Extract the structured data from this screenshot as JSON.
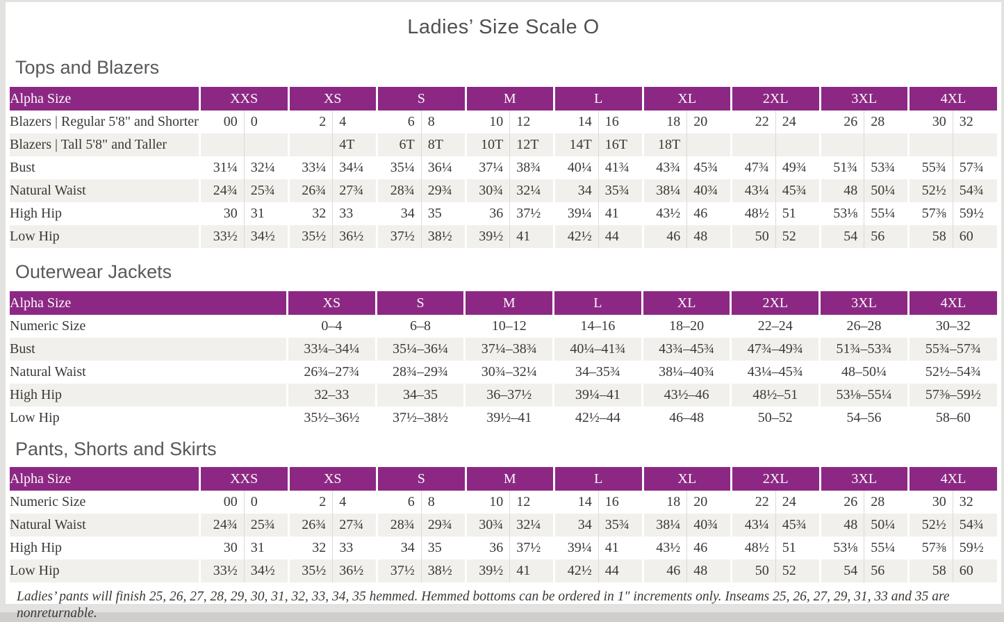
{
  "page": {
    "title": "Ladies’ Size Scale O",
    "footnote": "Ladies’ pants will finish 25, 26, 27, 28, 29, 30, 31, 32, 33, 34, 35 hemmed. Hemmed bottoms can be ordered in 1″ increments only. Inseams 25, 26, 27, 29, 31, 33 and 35 are nonreturnable."
  },
  "colors": {
    "header_purple": "#8c2884",
    "row_stripe": "#f2f0ed",
    "cell_divider": "#ddd9d4",
    "heading_gray": "#56585a",
    "text_gray": "#3a3835"
  },
  "tables": [
    {
      "heading": "Tops and Blazers",
      "header_label": "Alpha Size",
      "paired": true,
      "sizes": [
        "XXS",
        "XS",
        "S",
        "M",
        "L",
        "XL",
        "2XL",
        "3XL",
        "4XL"
      ],
      "rows": [
        {
          "label": "Blazers  |  Regular 5'8\" and Shorter",
          "values": [
            [
              "00",
              "0"
            ],
            [
              "2",
              "4"
            ],
            [
              "6",
              "8"
            ],
            [
              "10",
              "12"
            ],
            [
              "14",
              "16"
            ],
            [
              "18",
              "20"
            ],
            [
              "22",
              "24"
            ],
            [
              "26",
              "28"
            ],
            [
              "30",
              "32"
            ]
          ]
        },
        {
          "label": "Blazers  |  Tall 5'8\" and Taller",
          "values": [
            [
              "",
              ""
            ],
            [
              "",
              "4T"
            ],
            [
              "6T",
              "8T"
            ],
            [
              "10T",
              "12T"
            ],
            [
              "14T",
              "16T"
            ],
            [
              "18T",
              ""
            ],
            [
              "",
              ""
            ],
            [
              "",
              ""
            ],
            [
              "",
              ""
            ]
          ]
        },
        {
          "label": "Bust",
          "values": [
            [
              "31¼",
              "32¼"
            ],
            [
              "33¼",
              "34¼"
            ],
            [
              "35¼",
              "36¼"
            ],
            [
              "37¼",
              "38¾"
            ],
            [
              "40¼",
              "41¾"
            ],
            [
              "43¾",
              "45¾"
            ],
            [
              "47¾",
              "49¾"
            ],
            [
              "51¾",
              "53¾"
            ],
            [
              "55¾",
              "57¾"
            ]
          ]
        },
        {
          "label": "Natural Waist",
          "values": [
            [
              "24¾",
              "25¾"
            ],
            [
              "26¾",
              "27¾"
            ],
            [
              "28¾",
              "29¾"
            ],
            [
              "30¾",
              "32¼"
            ],
            [
              "34",
              "35¾"
            ],
            [
              "38¼",
              "40¾"
            ],
            [
              "43¼",
              "45¾"
            ],
            [
              "48",
              "50¼"
            ],
            [
              "52½",
              "54¾"
            ]
          ]
        },
        {
          "label": "High Hip",
          "values": [
            [
              "30",
              "31"
            ],
            [
              "32",
              "33"
            ],
            [
              "34",
              "35"
            ],
            [
              "36",
              "37½"
            ],
            [
              "39¼",
              "41"
            ],
            [
              "43½",
              "46"
            ],
            [
              "48½",
              "51"
            ],
            [
              "53⅛",
              "55¼"
            ],
            [
              "57⅜",
              "59½"
            ]
          ]
        },
        {
          "label": "Low Hip",
          "values": [
            [
              "33½",
              "34½"
            ],
            [
              "35½",
              "36½"
            ],
            [
              "37½",
              "38½"
            ],
            [
              "39½",
              "41"
            ],
            [
              "42½",
              "44"
            ],
            [
              "46",
              "48"
            ],
            [
              "50",
              "52"
            ],
            [
              "54",
              "56"
            ],
            [
              "58",
              "60"
            ]
          ]
        }
      ]
    },
    {
      "heading": "Outerwear Jackets",
      "header_label": "Alpha Size",
      "paired": false,
      "sizes": [
        "XS",
        "S",
        "M",
        "L",
        "XL",
        "2XL",
        "3XL",
        "4XL"
      ],
      "rows": [
        {
          "label": "Numeric Size",
          "values": [
            "0–4",
            "6–8",
            "10–12",
            "14–16",
            "18–20",
            "22–24",
            "26–28",
            "30–32"
          ]
        },
        {
          "label": "Bust",
          "values": [
            "33¼–34¼",
            "35¼–36¼",
            "37¼–38¾",
            "40¼–41¾",
            "43¾–45¾",
            "47¾–49¾",
            "51¾–53¾",
            "55¾–57¾"
          ]
        },
        {
          "label": "Natural Waist",
          "values": [
            "26¾–27¾",
            "28¾–29¾",
            "30¾–32¼",
            "34–35¾",
            "38¼–40¾",
            "43¼–45¾",
            "48–50¼",
            "52½–54¾"
          ]
        },
        {
          "label": "High Hip",
          "values": [
            "32–33",
            "34–35",
            "36–37½",
            "39¼–41",
            "43½–46",
            "48½–51",
            "53⅛–55¼",
            "57⅜–59½"
          ]
        },
        {
          "label": "Low Hip",
          "values": [
            "35½–36½",
            "37½–38½",
            "39½–41",
            "42½–44",
            "46–48",
            "50–52",
            "54–56",
            "58–60"
          ]
        }
      ]
    },
    {
      "heading": "Pants, Shorts and Skirts",
      "header_label": "Alpha Size",
      "paired": true,
      "sizes": [
        "XXS",
        "XS",
        "S",
        "M",
        "L",
        "XL",
        "2XL",
        "3XL",
        "4XL"
      ],
      "rows": [
        {
          "label": "Numeric Size",
          "values": [
            [
              "00",
              "0"
            ],
            [
              "2",
              "4"
            ],
            [
              "6",
              "8"
            ],
            [
              "10",
              "12"
            ],
            [
              "14",
              "16"
            ],
            [
              "18",
              "20"
            ],
            [
              "22",
              "24"
            ],
            [
              "26",
              "28"
            ],
            [
              "30",
              "32"
            ]
          ]
        },
        {
          "label": "Natural Waist",
          "values": [
            [
              "24¾",
              "25¾"
            ],
            [
              "26¾",
              "27¾"
            ],
            [
              "28¾",
              "29¾"
            ],
            [
              "30¾",
              "32¼"
            ],
            [
              "34",
              "35¾"
            ],
            [
              "38¼",
              "40¾"
            ],
            [
              "43¼",
              "45¾"
            ],
            [
              "48",
              "50¼"
            ],
            [
              "52½",
              "54¾"
            ]
          ]
        },
        {
          "label": "High Hip",
          "values": [
            [
              "30",
              "31"
            ],
            [
              "32",
              "33"
            ],
            [
              "34",
              "35"
            ],
            [
              "36",
              "37½"
            ],
            [
              "39¼",
              "41"
            ],
            [
              "43½",
              "46"
            ],
            [
              "48½",
              "51"
            ],
            [
              "53⅛",
              "55¼"
            ],
            [
              "57⅜",
              "59½"
            ]
          ]
        },
        {
          "label": "Low Hip",
          "values": [
            [
              "33½",
              "34½"
            ],
            [
              "35½",
              "36½"
            ],
            [
              "37½",
              "38½"
            ],
            [
              "39½",
              "41"
            ],
            [
              "42½",
              "44"
            ],
            [
              "46",
              "48"
            ],
            [
              "50",
              "52"
            ],
            [
              "54",
              "56"
            ],
            [
              "58",
              "60"
            ]
          ]
        }
      ]
    }
  ]
}
